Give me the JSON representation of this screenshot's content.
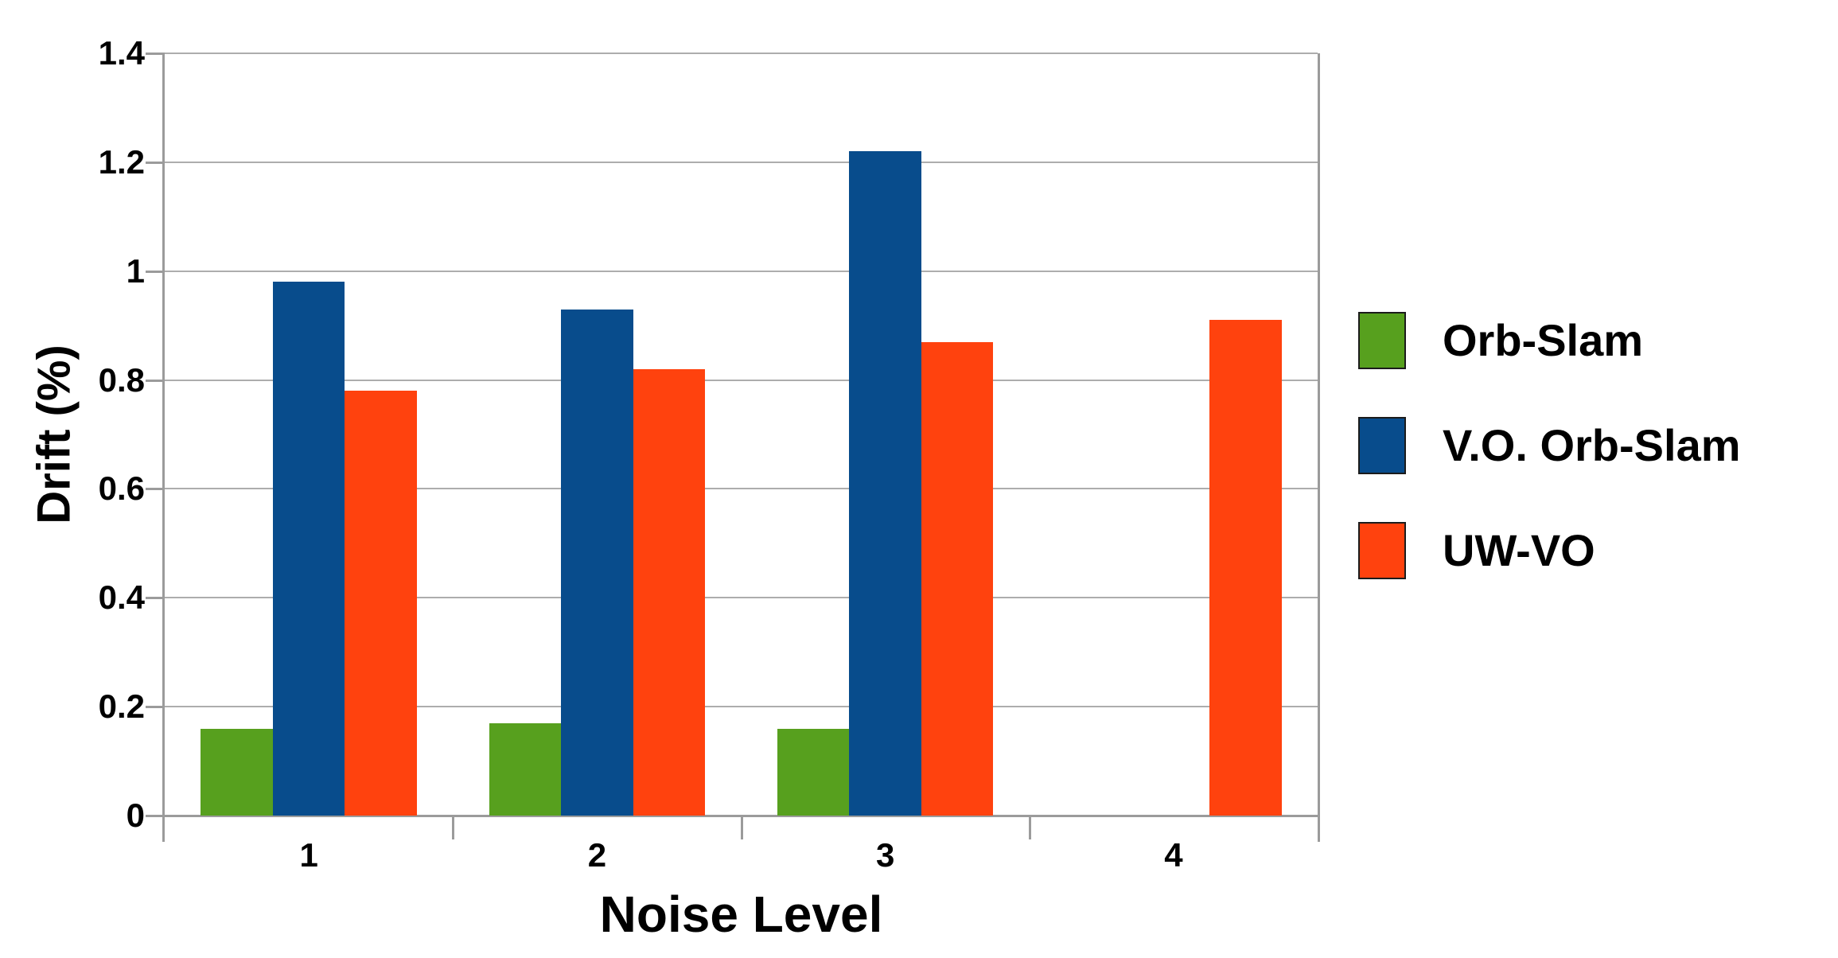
{
  "chart_data": {
    "type": "bar",
    "title": "",
    "xlabel": "Noise Level",
    "ylabel": "Drift (%)",
    "categories": [
      "1",
      "2",
      "3",
      "4"
    ],
    "series": [
      {
        "name": "Orb-Slam",
        "color": "#57a01e",
        "values": [
          0.16,
          0.17,
          0.16,
          0
        ]
      },
      {
        "name": "V.O. Orb-Slam",
        "color": "#084c8c",
        "values": [
          0.98,
          0.93,
          1.22,
          0
        ]
      },
      {
        "name": "UW-VO",
        "color": "#ff420e",
        "values": [
          0.78,
          0.82,
          0.87,
          0.91
        ]
      }
    ],
    "ylim": [
      0,
      1.4
    ],
    "ytick_step": 0.2,
    "ytick_labels": [
      "0",
      "0.2",
      "0.4",
      "0.6",
      "0.8",
      "1",
      "1.2",
      "1.4"
    ],
    "grid": "horizontal",
    "legend_position": "right"
  },
  "colors": {
    "grid": "#adadad",
    "axis": "#9b9b9b",
    "text": "#000000",
    "background": "#ffffff"
  }
}
